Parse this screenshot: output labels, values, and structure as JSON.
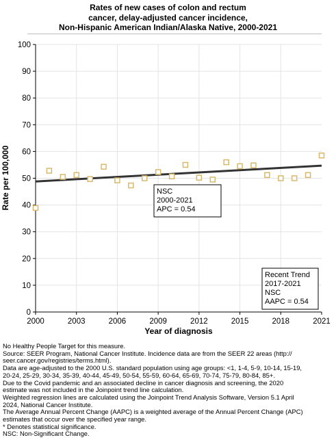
{
  "title_lines": [
    "Rates of new cases of colon and rectum",
    "cancer, delay-adjusted cancer incidence,",
    "Non-Hispanic American Indian/Alaska Native,  2000-2021"
  ],
  "chart_data": {
    "type": "scatter",
    "title": "Rates of new cases of colon and rectum cancer, delay-adjusted cancer incidence, Non-Hispanic American Indian/Alaska Native,  2000-2021",
    "xlabel": "Year of diagnosis",
    "ylabel": "Rate per 100,000",
    "xlim": [
      2000,
      2021
    ],
    "ylim": [
      0,
      100
    ],
    "x_ticks": [
      "2000",
      "2003",
      "2006",
      "2009",
      "2012",
      "2015",
      "2018",
      "2021"
    ],
    "y_ticks": [
      "0",
      "10",
      "20",
      "30",
      "40",
      "50",
      "60",
      "70",
      "80",
      "90",
      "100"
    ],
    "grid": true,
    "points": {
      "x": [
        2000,
        2001,
        2002,
        2003,
        2004,
        2005,
        2006,
        2007,
        2008,
        2009,
        2010,
        2011,
        2012,
        2013,
        2014,
        2015,
        2016,
        2017,
        2018,
        2019,
        2020,
        2021
      ],
      "y": [
        38.9,
        52.8,
        50.5,
        51.2,
        49.7,
        54.3,
        49.2,
        47.3,
        50.0,
        52.3,
        50.7,
        55.0,
        50.2,
        49.5,
        56.0,
        54.5,
        54.8,
        51.2,
        50.0,
        50.0,
        51.2,
        58.5
      ],
      "color": "#d9b86a",
      "marker": "open-square"
    },
    "trend_line": {
      "x": [
        2000,
        2021
      ],
      "y": [
        48.8,
        54.7
      ],
      "color": "#333333"
    },
    "annotations": [
      {
        "lines": [
          "NSC",
          "2000-2021",
          "APC =  0.54"
        ]
      },
      {
        "lines": [
          "Recent Trend",
          "2017-2021",
          "NSC",
          "AAPC =  0.54"
        ]
      }
    ]
  },
  "notes": [
    "No Healthy People Target for this measure.",
    "Source: SEER Program, National Cancer Institute. Incidence data are from the SEER 22 areas (http://",
    "seer.cancer.gov/registries/terms.html).",
    "Data are age-adjusted to the 2000 U.S. standard population using age groups: <1, 1-4, 5-9, 10-14, 15-19,",
    "20-24, 25-29, 30-34, 35-39, 40-44, 45-49, 50-54, 55-59, 60-64, 65-69, 70-74, 75-79, 80-84, 85+.",
    "Due to the Covid pandemic and an associated decline in cancer diagnosis and screening, the 2020",
    "estimate was not included in the Joinpoint trend line calculation.",
    "Weighted regression lines are calculated using the Joinpoint Trend Analysis Software, Version 5.1 April",
    "2024, National Cancer Institute.",
    "The Average Annual Percent Change (AAPC) is a weighted average of the Annual Percent Change (APC)",
    "estimates that occur over the specified year range.",
    "* Denotes statistical significance.",
    "NSC: Non-Significant Change."
  ]
}
